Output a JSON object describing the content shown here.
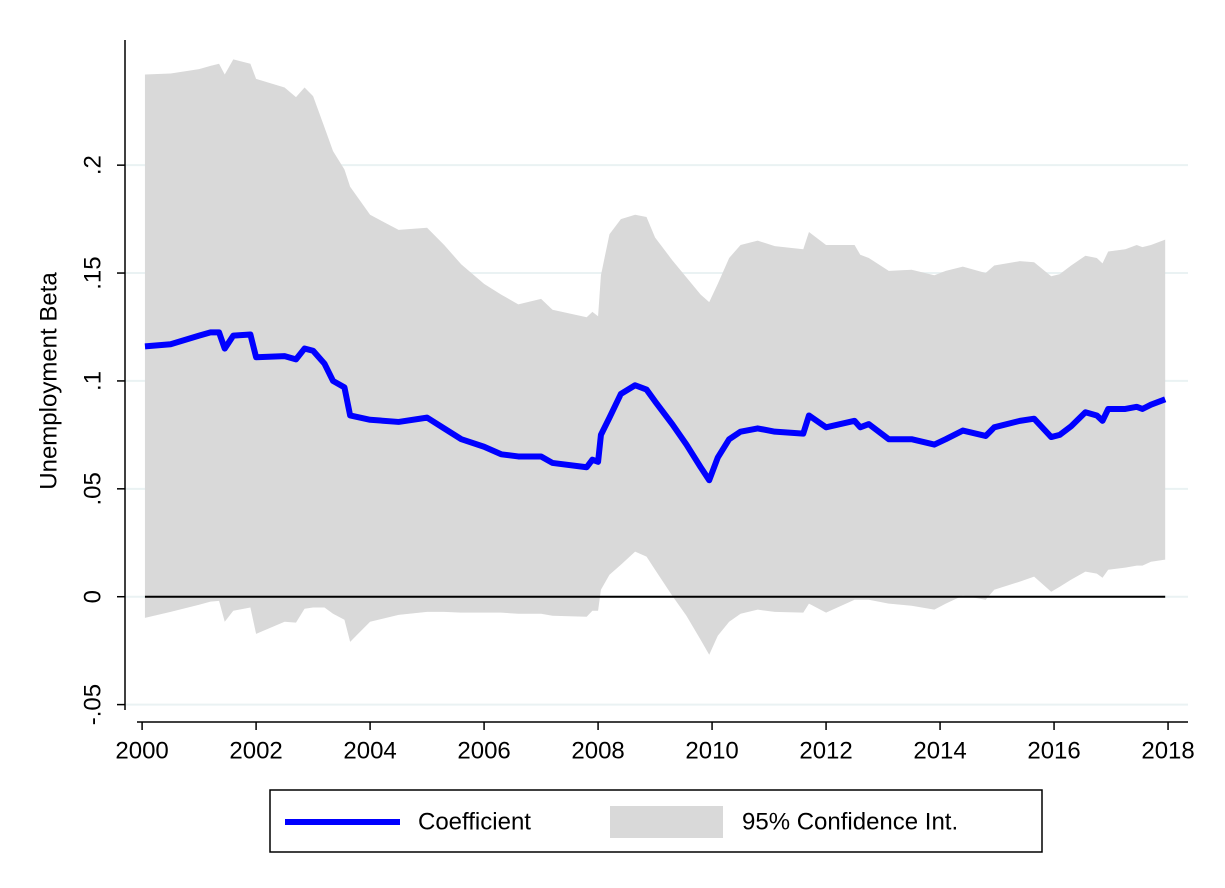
{
  "chart_data": {
    "type": "line-band",
    "y_label": "Unemployment Beta",
    "x": [
      2000.05,
      2000.5,
      2001.0,
      2001.2,
      2001.35,
      2001.45,
      2001.6,
      2001.9,
      2002.0,
      2002.5,
      2002.7,
      2002.85,
      2003.0,
      2003.2,
      2003.35,
      2003.55,
      2003.65,
      2004.0,
      2004.5,
      2005.0,
      2005.3,
      2005.6,
      2006.0,
      2006.3,
      2006.6,
      2007.0,
      2007.2,
      2007.8,
      2007.9,
      2008.0,
      2008.05,
      2008.2,
      2008.4,
      2008.65,
      2008.85,
      2009.0,
      2009.3,
      2009.55,
      2009.8,
      2009.95,
      2010.1,
      2010.3,
      2010.5,
      2010.8,
      2011.1,
      2011.6,
      2011.7,
      2012.0,
      2012.5,
      2012.6,
      2012.75,
      2013.1,
      2013.5,
      2013.9,
      2014.1,
      2014.4,
      2014.8,
      2014.95,
      2015.4,
      2015.65,
      2015.95,
      2016.1,
      2016.3,
      2016.55,
      2016.75,
      2016.85,
      2016.95,
      2017.25,
      2017.45,
      2017.55,
      2017.7,
      2017.95
    ],
    "series": [
      {
        "name": "Coefficient",
        "color": "#0000ff",
        "values": [
          0.116,
          0.117,
          0.121,
          0.1225,
          0.1225,
          0.115,
          0.121,
          0.1215,
          0.111,
          0.1115,
          0.11,
          0.115,
          0.114,
          0.108,
          0.1,
          0.097,
          0.084,
          0.082,
          0.081,
          0.083,
          0.078,
          0.073,
          0.0695,
          0.066,
          0.065,
          0.065,
          0.062,
          0.06,
          0.0635,
          0.0625,
          0.075,
          0.083,
          0.094,
          0.098,
          0.096,
          0.0905,
          0.08,
          0.0705,
          0.06,
          0.054,
          0.0645,
          0.073,
          0.0765,
          0.078,
          0.0765,
          0.0756,
          0.084,
          0.0785,
          0.0815,
          0.0785,
          0.08,
          0.073,
          0.073,
          0.0705,
          0.073,
          0.077,
          0.0745,
          0.0785,
          0.0815,
          0.0825,
          0.074,
          0.075,
          0.079,
          0.0855,
          0.084,
          0.0815,
          0.087,
          0.087,
          0.088,
          0.087,
          0.089,
          0.0915
        ]
      },
      {
        "name": "95% Confidence Int.",
        "color": "#d9d9d9",
        "upper": [
          0.242,
          0.2425,
          0.2445,
          0.246,
          0.247,
          0.242,
          0.249,
          0.247,
          0.24,
          0.236,
          0.2315,
          0.236,
          0.232,
          0.2175,
          0.2065,
          0.198,
          0.19,
          0.177,
          0.17,
          0.171,
          0.163,
          0.154,
          0.145,
          0.14,
          0.1355,
          0.138,
          0.133,
          0.1295,
          0.132,
          0.13,
          0.149,
          0.168,
          0.175,
          0.177,
          0.176,
          0.1665,
          0.156,
          0.148,
          0.14,
          0.1365,
          0.145,
          0.157,
          0.163,
          0.165,
          0.1625,
          0.161,
          0.169,
          0.163,
          0.163,
          0.1585,
          0.157,
          0.151,
          0.1515,
          0.149,
          0.151,
          0.153,
          0.15,
          0.1535,
          0.1555,
          0.155,
          0.1485,
          0.1495,
          0.1535,
          0.158,
          0.157,
          0.1545,
          0.16,
          0.161,
          0.163,
          0.162,
          0.163,
          0.1655
        ],
        "lower": [
          -0.0098,
          -0.007,
          -0.0037,
          -0.0023,
          -0.0019,
          -0.0116,
          -0.0065,
          -0.005,
          -0.0172,
          -0.0116,
          -0.012,
          -0.0056,
          -0.005,
          -0.005,
          -0.0079,
          -0.0107,
          -0.0209,
          -0.0116,
          -0.0084,
          -0.007,
          -0.007,
          -0.0074,
          -0.0074,
          -0.0074,
          -0.0079,
          -0.0079,
          -0.0088,
          -0.0093,
          -0.0065,
          -0.0065,
          0.0032,
          0.0102,
          0.0148,
          0.0209,
          0.0186,
          0.0125,
          0.0005,
          -0.0088,
          -0.02,
          -0.0269,
          -0.0181,
          -0.0116,
          -0.0079,
          -0.006,
          -0.007,
          -0.0074,
          -0.0032,
          -0.0074,
          -0.0014,
          -0.0014,
          -0.0014,
          -0.0032,
          -0.0042,
          -0.006,
          -0.0032,
          0.0005,
          -0.0014,
          0.0032,
          0.007,
          0.0093,
          0.0023,
          0.0046,
          0.0079,
          0.0116,
          0.0107,
          0.0088,
          0.0125,
          0.0135,
          0.0144,
          0.0144,
          0.0162,
          0.0172
        ]
      }
    ],
    "xlim": [
      1999.7,
      2018.35
    ],
    "ylim": [
      -0.0525,
      0.258
    ],
    "xticks": [
      2000,
      2002,
      2004,
      2006,
      2008,
      2010,
      2012,
      2014,
      2016,
      2018
    ],
    "yticks": [
      {
        "value": -0.05,
        "label": "-.05"
      },
      0,
      {
        "value": 0.05,
        "label": ".05"
      },
      {
        "value": 0.1,
        "label": ".1"
      },
      {
        "value": 0.15,
        "label": ".15"
      },
      {
        "value": 0.2,
        "label": ".2"
      }
    ],
    "yline": 0,
    "grid": true,
    "legend": "bottom"
  }
}
